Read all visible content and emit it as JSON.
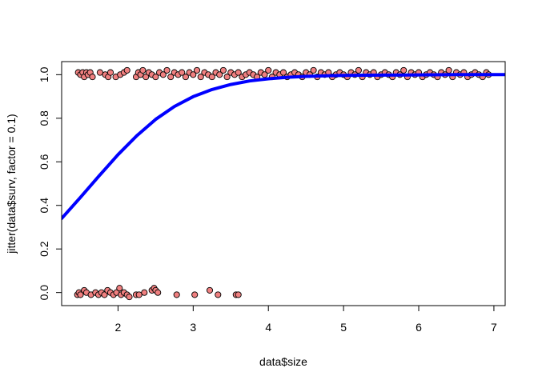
{
  "chart_data": {
    "type": "scatter",
    "title": "",
    "xlabel": "data$size",
    "ylabel": "jitter(data$surv, factor = 0.1)",
    "xlim": [
      1.25,
      7.15
    ],
    "ylim": [
      -0.06,
      1.06
    ],
    "xticks": [
      "2",
      "3",
      "4",
      "5",
      "6",
      "7"
    ],
    "yticks": [
      "0.0",
      "0.2",
      "0.4",
      "0.6",
      "0.8",
      "1.0"
    ],
    "grid": false,
    "legend": "none",
    "point_fill": "#f08080",
    "point_stroke": "#000000",
    "curve_color": "#0000ff",
    "series": [
      {
        "kind": "points",
        "points": [
          [
            1.47,
            1.01
          ],
          [
            1.5,
            1.0
          ],
          [
            1.53,
            1.01
          ],
          [
            1.55,
            0.99
          ],
          [
            1.58,
            1.01
          ],
          [
            1.6,
            1.0
          ],
          [
            1.63,
            1.01
          ],
          [
            1.66,
            0.99
          ],
          [
            1.76,
            1.01
          ],
          [
            1.83,
            1.0
          ],
          [
            1.87,
            0.99
          ],
          [
            1.9,
            1.01
          ],
          [
            1.97,
            0.99
          ],
          [
            2.03,
            1.0
          ],
          [
            2.08,
            1.01
          ],
          [
            2.12,
            1.02
          ],
          [
            2.24,
            0.99
          ],
          [
            2.27,
            1.01
          ],
          [
            2.3,
            1.0
          ],
          [
            2.33,
            1.02
          ],
          [
            2.37,
            0.99
          ],
          [
            2.41,
            1.01
          ],
          [
            2.45,
            1.0
          ],
          [
            2.5,
            0.99
          ],
          [
            2.55,
            1.01
          ],
          [
            2.6,
            1.0
          ],
          [
            2.65,
            1.02
          ],
          [
            2.7,
            0.99
          ],
          [
            2.75,
            1.01
          ],
          [
            2.8,
            1.0
          ],
          [
            2.85,
            1.01
          ],
          [
            2.9,
            0.99
          ],
          [
            2.95,
            1.01
          ],
          [
            3.0,
            1.0
          ],
          [
            3.05,
            1.02
          ],
          [
            3.1,
            0.99
          ],
          [
            3.15,
            1.01
          ],
          [
            3.2,
            1.0
          ],
          [
            3.25,
            0.99
          ],
          [
            3.3,
            1.01
          ],
          [
            3.35,
            1.0
          ],
          [
            3.4,
            1.02
          ],
          [
            3.45,
            0.99
          ],
          [
            3.5,
            1.01
          ],
          [
            3.55,
            1.0
          ],
          [
            3.6,
            1.01
          ],
          [
            3.65,
            0.99
          ],
          [
            3.7,
            1.0
          ],
          [
            3.75,
            1.01
          ],
          [
            3.8,
            1.0
          ],
          [
            3.85,
            0.99
          ],
          [
            3.9,
            1.01
          ],
          [
            3.95,
            1.0
          ],
          [
            4.0,
            1.02
          ],
          [
            4.05,
            0.99
          ],
          [
            4.1,
            1.01
          ],
          [
            4.15,
            1.0
          ],
          [
            4.2,
            1.01
          ],
          [
            4.25,
            0.99
          ],
          [
            4.3,
            1.0
          ],
          [
            4.35,
            1.01
          ],
          [
            4.4,
            1.0
          ],
          [
            4.45,
            0.99
          ],
          [
            4.5,
            1.01
          ],
          [
            4.55,
            1.0
          ],
          [
            4.6,
            1.02
          ],
          [
            4.65,
            0.99
          ],
          [
            4.7,
            1.01
          ],
          [
            4.75,
            1.0
          ],
          [
            4.8,
            1.01
          ],
          [
            4.85,
            0.99
          ],
          [
            4.9,
            1.0
          ],
          [
            4.95,
            1.01
          ],
          [
            5.0,
            1.0
          ],
          [
            5.05,
            0.99
          ],
          [
            5.1,
            1.01
          ],
          [
            5.15,
            1.0
          ],
          [
            5.2,
            1.02
          ],
          [
            5.25,
            0.99
          ],
          [
            5.3,
            1.01
          ],
          [
            5.35,
            1.0
          ],
          [
            5.4,
            1.01
          ],
          [
            5.45,
            0.99
          ],
          [
            5.5,
            1.0
          ],
          [
            5.55,
            1.01
          ],
          [
            5.6,
            1.0
          ],
          [
            5.65,
            0.99
          ],
          [
            5.7,
            1.01
          ],
          [
            5.75,
            1.0
          ],
          [
            5.8,
            1.02
          ],
          [
            5.85,
            0.99
          ],
          [
            5.9,
            1.01
          ],
          [
            5.95,
            1.0
          ],
          [
            6.0,
            1.01
          ],
          [
            6.05,
            0.99
          ],
          [
            6.1,
            1.0
          ],
          [
            6.15,
            1.01
          ],
          [
            6.2,
            1.0
          ],
          [
            6.25,
            0.99
          ],
          [
            6.3,
            1.01
          ],
          [
            6.35,
            1.0
          ],
          [
            6.4,
            1.02
          ],
          [
            6.45,
            0.99
          ],
          [
            6.5,
            1.01
          ],
          [
            6.55,
            1.0
          ],
          [
            6.6,
            1.01
          ],
          [
            6.65,
            0.99
          ],
          [
            6.7,
            1.0
          ],
          [
            6.75,
            1.01
          ],
          [
            6.8,
            1.0
          ],
          [
            6.85,
            0.99
          ],
          [
            6.9,
            1.01
          ],
          [
            6.93,
            1.0
          ],
          [
            1.46,
            -0.01
          ],
          [
            1.48,
            0.0
          ],
          [
            1.5,
            -0.01
          ],
          [
            1.55,
            0.01
          ],
          [
            1.58,
            0.0
          ],
          [
            1.64,
            -0.01
          ],
          [
            1.7,
            0.0
          ],
          [
            1.74,
            -0.01
          ],
          [
            1.78,
            0.0
          ],
          [
            1.82,
            -0.01
          ],
          [
            1.86,
            0.01
          ],
          [
            1.9,
            0.0
          ],
          [
            1.94,
            -0.01
          ],
          [
            1.98,
            0.0
          ],
          [
            2.02,
            0.02
          ],
          [
            2.04,
            -0.01
          ],
          [
            2.08,
            0.0
          ],
          [
            2.12,
            -0.01
          ],
          [
            2.15,
            -0.02
          ],
          [
            2.24,
            -0.01
          ],
          [
            2.28,
            -0.01
          ],
          [
            2.35,
            0.0
          ],
          [
            2.45,
            0.01
          ],
          [
            2.48,
            0.02
          ],
          [
            2.5,
            0.01
          ],
          [
            2.53,
            0.0
          ],
          [
            2.78,
            -0.01
          ],
          [
            3.02,
            -0.01
          ],
          [
            3.22,
            0.01
          ],
          [
            3.33,
            -0.01
          ],
          [
            3.57,
            -0.01
          ],
          [
            3.6,
            -0.01
          ]
        ]
      },
      {
        "kind": "curve",
        "x": [
          1.25,
          1.5,
          1.75,
          2.0,
          2.25,
          2.5,
          2.75,
          3.0,
          3.25,
          3.5,
          3.75,
          4.0,
          4.25,
          4.5,
          4.75,
          5.0,
          5.5,
          6.0,
          6.5,
          7.0,
          7.15
        ],
        "y": [
          0.34,
          0.437,
          0.536,
          0.633,
          0.72,
          0.795,
          0.854,
          0.899,
          0.932,
          0.955,
          0.971,
          0.981,
          0.988,
          0.992,
          0.995,
          0.997,
          0.998,
          0.999,
          1.0,
          1.0,
          1.0
        ]
      }
    ]
  }
}
